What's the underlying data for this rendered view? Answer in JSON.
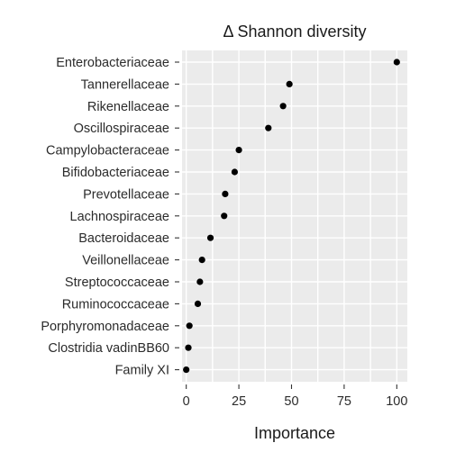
{
  "chart_data": {
    "type": "scatter",
    "title": "Δ Shannon diversity",
    "xlabel": "Importance",
    "ylabel": "",
    "xlim": [
      -2,
      105
    ],
    "xticks": [
      0,
      25,
      50,
      75,
      100
    ],
    "grid": true,
    "panel_background": "#ebebeb",
    "point_color": "#000000",
    "categories": [
      "Enterobacteriaceae",
      "Tannerellaceae",
      "Rikenellaceae",
      "Oscillospiraceae",
      "Campylobacteraceae",
      "Bifidobacteriaceae",
      "Prevotellaceae",
      "Lachnospiraceae",
      "Bacteroidaceae",
      "Veillonellaceae",
      "Streptococcaceae",
      "Ruminococcaceae",
      "Porphyromonadaceae",
      "Clostridia vadinBB60",
      "Family XI"
    ],
    "values": [
      100,
      49,
      46,
      39,
      25,
      23,
      18.5,
      18,
      11.5,
      7.5,
      6.5,
      5.5,
      1.5,
      1,
      0
    ]
  }
}
